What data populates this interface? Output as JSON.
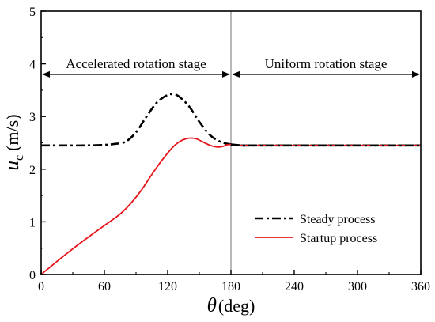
{
  "chart_data": {
    "type": "line",
    "xlabel_symbol": "θ",
    "xlabel_unit": "(deg)",
    "ylabel_symbol": "u",
    "ylabel_subscript": "c",
    "ylabel_unit": "(m/s)",
    "xlim": [
      0,
      360
    ],
    "ylim": [
      0,
      5
    ],
    "xticks": [
      0,
      60,
      120,
      180,
      240,
      300,
      360
    ],
    "yticks": [
      0,
      1,
      2,
      3,
      4,
      5
    ],
    "grid": false,
    "legend_position": "bottom-right",
    "stage_divider_x": 180,
    "stage_arrow_y": 3.8,
    "stages": [
      {
        "label": "Accelerated rotation stage",
        "from": 0,
        "to": 180
      },
      {
        "label": "Uniform rotation stage",
        "from": 180,
        "to": 360
      }
    ],
    "series": [
      {
        "name": "Steady process",
        "color": "#000000",
        "style": "dash-dot",
        "x": [
          0,
          20,
          40,
          60,
          70,
          80,
          90,
          100,
          110,
          120,
          125,
          130,
          140,
          150,
          160,
          170,
          180,
          190,
          200,
          240,
          300,
          360
        ],
        "y": [
          2.45,
          2.45,
          2.45,
          2.46,
          2.48,
          2.52,
          2.7,
          3.0,
          3.27,
          3.41,
          3.42,
          3.39,
          3.2,
          2.9,
          2.65,
          2.52,
          2.47,
          2.45,
          2.45,
          2.45,
          2.45,
          2.45
        ]
      },
      {
        "name": "Startup process",
        "color": "#e8141b",
        "style": "solid",
        "x": [
          0,
          20,
          40,
          60,
          75,
          85,
          95,
          105,
          115,
          125,
          132,
          138,
          143,
          148,
          155,
          162,
          168,
          172,
          176,
          180,
          185,
          190,
          200,
          240,
          300,
          360
        ],
        "y": [
          0,
          0.33,
          0.64,
          0.93,
          1.15,
          1.35,
          1.6,
          1.9,
          2.18,
          2.42,
          2.53,
          2.58,
          2.59,
          2.57,
          2.5,
          2.44,
          2.42,
          2.43,
          2.46,
          2.47,
          2.46,
          2.45,
          2.45,
          2.45,
          2.45,
          2.45
        ]
      }
    ]
  }
}
